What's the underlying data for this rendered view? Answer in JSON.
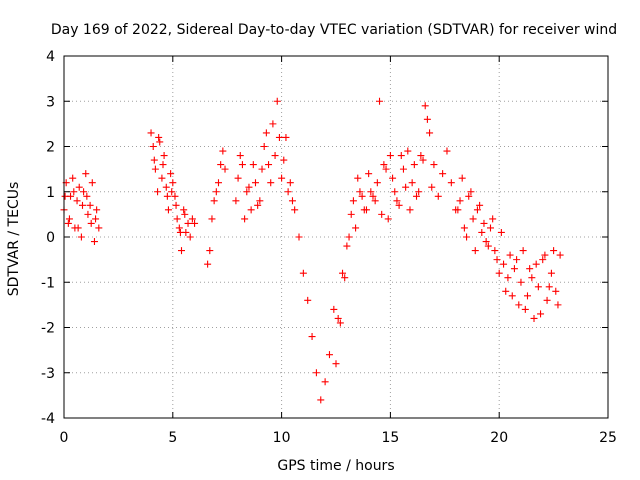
{
  "chart_data": {
    "type": "scatter",
    "title": "Day 169 of 2022, Sidereal Day-to-day VTEC variation (SDTVAR) for receiver wind",
    "xlabel": "GPS time / hours",
    "ylabel": "SDTVAR / TECUs",
    "xlim": [
      0,
      25
    ],
    "ylim": [
      -4,
      4
    ],
    "x_ticks": [
      0,
      5,
      10,
      15,
      20,
      25
    ],
    "x_tick_labels": [
      "0",
      "5",
      "10",
      "15",
      "20",
      "25"
    ],
    "y_ticks": [
      -4,
      -3,
      -2,
      -1,
      0,
      1,
      2,
      3,
      4
    ],
    "y_tick_labels": [
      "-4",
      "-3",
      "-2",
      "-1",
      "0",
      "1",
      "2",
      "3",
      "4"
    ],
    "grid": true,
    "marker": "+",
    "color": "#ff0000",
    "series": [
      {
        "name": "SDTVAR",
        "x": [
          0.0,
          0.1,
          0.2,
          0.3,
          0.4,
          0.5,
          0.6,
          0.7,
          0.8,
          0.9,
          1.0,
          1.1,
          1.2,
          1.3,
          1.4,
          1.5,
          1.6,
          4.0,
          4.1,
          4.2,
          4.3,
          4.4,
          4.5,
          4.6,
          4.7,
          4.8,
          4.9,
          5.0,
          5.1,
          5.2,
          5.3,
          5.4,
          5.5,
          5.6,
          5.7,
          5.8,
          5.9,
          6.0,
          6.6,
          6.7,
          6.8,
          6.9,
          7.0,
          7.1,
          7.2,
          7.3,
          7.4,
          7.9,
          8.0,
          8.2,
          8.4,
          8.6,
          8.8,
          9.0,
          9.2,
          9.4,
          9.6,
          9.8,
          10.0,
          10.2,
          10.4,
          10.6,
          10.8,
          11.0,
          11.2,
          11.4,
          11.6,
          11.8,
          12.0,
          12.2,
          12.4,
          12.6,
          12.8,
          13.0,
          13.2,
          13.4,
          13.6,
          13.8,
          14.0,
          14.2,
          14.4,
          14.5,
          14.6,
          14.8,
          15.0,
          15.2,
          15.4,
          15.6,
          15.8,
          16.0,
          16.2,
          16.4,
          16.6,
          16.7,
          16.8,
          16.9,
          17.0,
          17.2,
          17.4,
          17.6,
          17.8,
          18.0,
          18.2,
          18.4,
          18.6,
          18.8,
          19.0,
          19.2,
          19.4,
          19.6,
          19.8,
          20.0,
          20.2,
          20.4,
          20.6,
          20.8,
          21.0,
          21.2,
          21.4,
          21.6,
          21.8,
          22.0,
          22.2,
          22.4,
          22.6,
          22.8,
          0.05,
          0.25,
          0.45,
          0.65,
          0.85,
          1.05,
          1.25,
          1.45,
          4.15,
          4.35,
          4.55,
          4.75,
          4.95,
          5.15,
          5.35,
          5.55,
          8.1,
          8.3,
          8.5,
          8.7,
          8.9,
          9.1,
          9.3,
          9.5,
          9.7,
          9.9,
          10.1,
          10.3,
          10.5,
          12.5,
          12.7,
          12.9,
          13.1,
          13.3,
          13.5,
          13.7,
          13.9,
          14.1,
          14.3,
          14.7,
          14.9,
          15.1,
          15.3,
          15.5,
          15.7,
          15.9,
          16.1,
          16.3,
          16.5,
          18.1,
          18.3,
          18.5,
          18.7,
          18.9,
          19.1,
          19.3,
          19.5,
          19.7,
          19.9,
          20.1,
          20.3,
          20.5,
          20.7,
          20.9,
          21.1,
          21.3,
          21.5,
          21.7,
          21.9,
          22.1,
          22.3,
          22.5,
          22.7
        ],
        "y": [
          0.6,
          1.2,
          0.3,
          0.9,
          1.3,
          0.2,
          0.8,
          1.1,
          0.0,
          1.0,
          1.4,
          0.5,
          0.7,
          1.2,
          -0.1,
          0.6,
          0.2,
          2.3,
          2.0,
          1.5,
          1.0,
          2.1,
          1.3,
          1.8,
          1.1,
          0.6,
          1.4,
          1.2,
          0.9,
          0.4,
          0.2,
          -0.3,
          0.6,
          0.1,
          0.3,
          0.0,
          0.4,
          0.3,
          -0.6,
          -0.3,
          0.4,
          0.8,
          1.0,
          1.2,
          1.6,
          1.9,
          1.5,
          0.8,
          1.3,
          1.6,
          1.0,
          0.6,
          1.2,
          0.8,
          2.0,
          1.6,
          2.5,
          3.0,
          1.3,
          2.2,
          1.2,
          0.6,
          0.0,
          -0.8,
          -1.4,
          -2.2,
          -3.0,
          -3.6,
          -3.2,
          -2.6,
          -1.6,
          -1.8,
          -0.8,
          -0.2,
          0.5,
          0.2,
          1.0,
          0.6,
          1.4,
          0.9,
          1.2,
          3.0,
          0.5,
          1.5,
          1.8,
          1.0,
          0.7,
          1.5,
          1.9,
          1.2,
          0.9,
          1.8,
          2.9,
          2.6,
          2.3,
          1.1,
          1.6,
          0.9,
          1.4,
          1.9,
          1.2,
          0.6,
          0.8,
          0.2,
          0.9,
          0.4,
          0.6,
          0.1,
          -0.1,
          0.2,
          -0.3,
          -0.8,
          -0.6,
          -0.9,
          -1.3,
          -0.5,
          -1.0,
          -1.6,
          -0.7,
          -1.8,
          -1.1,
          -0.5,
          -1.4,
          -0.8,
          -1.2,
          -0.4,
          0.9,
          0.4,
          1.0,
          0.2,
          0.7,
          0.9,
          0.3,
          0.4,
          1.7,
          2.2,
          1.6,
          0.9,
          1.0,
          0.7,
          0.1,
          0.5,
          1.8,
          0.4,
          1.1,
          1.6,
          0.7,
          1.5,
          2.3,
          1.2,
          1.8,
          2.2,
          1.7,
          1.0,
          0.8,
          -2.8,
          -1.9,
          -0.9,
          0.0,
          0.8,
          1.3,
          0.9,
          0.6,
          1.0,
          0.8,
          1.6,
          0.4,
          1.3,
          0.8,
          1.8,
          1.1,
          0.6,
          1.6,
          1.0,
          1.7,
          0.6,
          1.3,
          0.0,
          1.0,
          -0.3,
          0.7,
          0.3,
          -0.2,
          0.4,
          -0.5,
          0.1,
          -1.2,
          -0.4,
          -0.7,
          -1.5,
          -0.3,
          -1.3,
          -0.9,
          -0.6,
          -1.7,
          -0.4,
          -1.1,
          -0.3,
          -1.5
        ]
      }
    ]
  }
}
